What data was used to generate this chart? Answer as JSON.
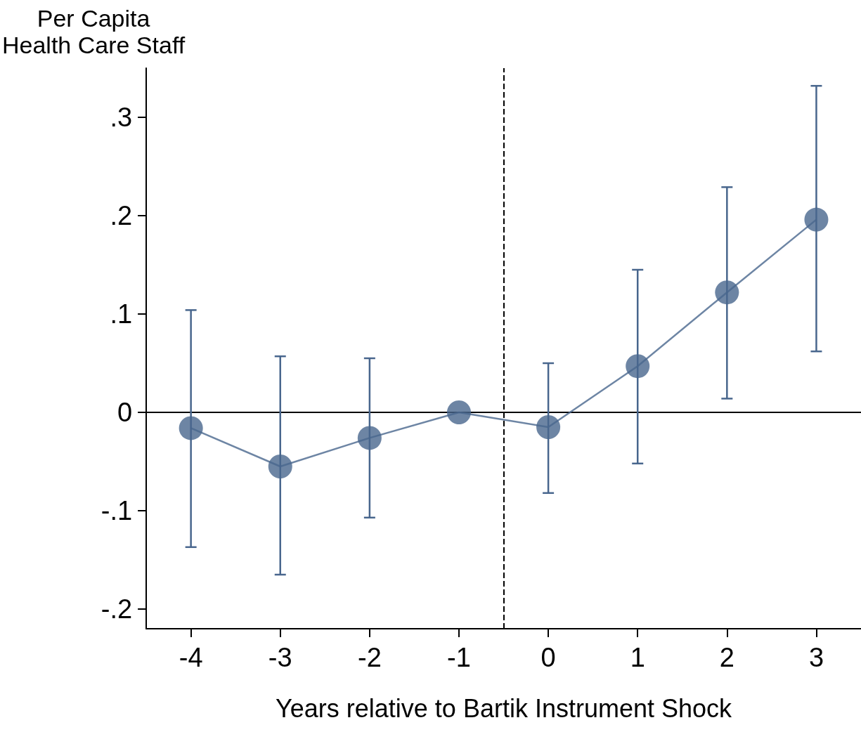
{
  "chart_data": {
    "type": "line",
    "ylabel": "Per Capita\nHealth Care Staff",
    "xlabel": "Years relative to Bartik Instrument Shock",
    "x": [
      -4,
      -3,
      -2,
      -1,
      0,
      1,
      2,
      3
    ],
    "series": [
      {
        "color": "#48668d",
        "values": [
          -0.016,
          -0.055,
          -0.026,
          0,
          -0.015,
          0.047,
          0.122,
          0.196
        ],
        "errors": [
          [
            -0.137,
            0.104
          ],
          [
            -0.165,
            0.057
          ],
          [
            -0.107,
            0.055
          ],
          null,
          [
            -0.082,
            0.05
          ],
          [
            -0.052,
            0.145
          ],
          [
            0.014,
            0.229
          ],
          [
            0.062,
            0.332
          ]
        ]
      }
    ],
    "xlim": [
      -4.5,
      3.5
    ],
    "xticks": [
      -4,
      -3,
      -2,
      -1,
      0,
      1,
      2,
      3
    ],
    "ylim": [
      -0.22,
      0.35
    ],
    "yticks": [
      {
        "value": -0.2,
        "label": "-.2"
      },
      {
        "value": -0.1,
        "label": "-.1"
      },
      0,
      {
        "value": 0.1,
        "label": ".1"
      },
      {
        "value": 0.2,
        "label": ".2"
      },
      {
        "value": 0.3,
        "label": ".3"
      }
    ],
    "ref_lines": [
      {
        "axis": "y",
        "value": 0,
        "color": "#000000",
        "line_style": "solid"
      },
      {
        "axis": "x",
        "value": -0.5,
        "color": "#000000",
        "line_style": "dashed"
      }
    ],
    "grid": false,
    "marker": "circle",
    "line_style": "solid"
  }
}
